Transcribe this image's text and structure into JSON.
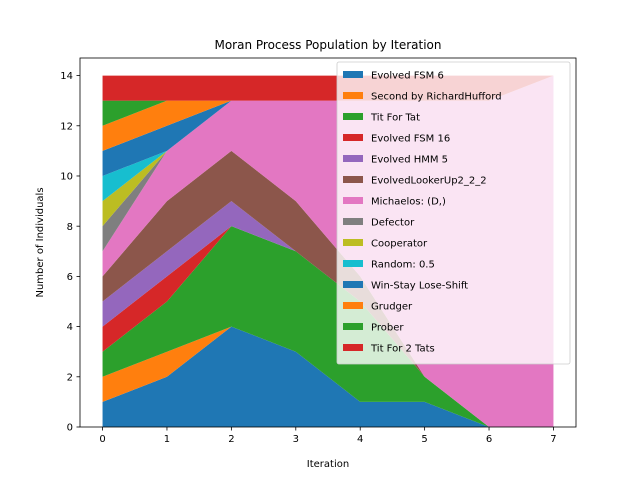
{
  "chart_data": {
    "type": "area",
    "title": "Moran Process Population by Iteration",
    "xlabel": "Iteration",
    "ylabel": "Number of Individuals",
    "x": [
      0,
      1,
      2,
      3,
      4,
      5,
      6,
      7
    ],
    "xlim": [
      -0.35,
      7.35
    ],
    "ylim": [
      0,
      14.7
    ],
    "xticks": [
      0,
      1,
      2,
      3,
      4,
      5,
      6,
      7
    ],
    "yticks": [
      0,
      2,
      4,
      6,
      8,
      10,
      12,
      14
    ],
    "stacked": true,
    "grid": false,
    "legend": "top-right",
    "series": [
      {
        "name": "Evolved FSM 6",
        "color": "#1f77b4",
        "values": [
          1,
          2,
          4,
          3,
          1,
          1,
          0,
          0
        ]
      },
      {
        "name": "Second by RichardHufford",
        "color": "#ff7f0e",
        "values": [
          1,
          1,
          0,
          0,
          0,
          0,
          0,
          0
        ]
      },
      {
        "name": "Tit For Tat",
        "color": "#2ca02c",
        "values": [
          1,
          2,
          4,
          4,
          4,
          1,
          0,
          0
        ]
      },
      {
        "name": "Evolved FSM 16",
        "color": "#d62728",
        "values": [
          1,
          1,
          0,
          0,
          0,
          0,
          0,
          0
        ]
      },
      {
        "name": "Evolved HMM 5",
        "color": "#9467bd",
        "values": [
          1,
          1,
          1,
          0,
          0,
          0,
          0,
          0
        ]
      },
      {
        "name": "EvolvedLookerUp2_2_2",
        "color": "#8c564b",
        "values": [
          1,
          2,
          2,
          2,
          1,
          0,
          0,
          0
        ]
      },
      {
        "name": "Michaelos: (D,)",
        "color": "#e377c2",
        "values": [
          1,
          2,
          2,
          4,
          7,
          11,
          13,
          14
        ]
      },
      {
        "name": "Defector",
        "color": "#7f7f7f",
        "values": [
          1,
          0,
          0,
          0,
          0,
          0,
          0,
          0
        ]
      },
      {
        "name": "Cooperator",
        "color": "#bcbd22",
        "values": [
          1,
          0,
          0,
          0,
          0,
          0,
          0,
          0
        ]
      },
      {
        "name": "Random: 0.5",
        "color": "#17becf",
        "values": [
          1,
          0,
          0,
          0,
          0,
          0,
          0,
          0
        ]
      },
      {
        "name": "Win-Stay Lose-Shift",
        "color": "#1f77b4",
        "values": [
          1,
          1,
          0,
          0,
          0,
          0,
          0,
          0
        ]
      },
      {
        "name": "Grudger",
        "color": "#ff7f0e",
        "values": [
          1,
          1,
          0,
          0,
          0,
          0,
          0,
          0
        ]
      },
      {
        "name": "Prober",
        "color": "#2ca02c",
        "values": [
          1,
          0,
          0,
          0,
          0,
          0,
          0,
          0
        ]
      },
      {
        "name": "Tit For 2 Tats",
        "color": "#d62728",
        "values": [
          1,
          1,
          1,
          1,
          1,
          1,
          1,
          0
        ]
      }
    ]
  }
}
